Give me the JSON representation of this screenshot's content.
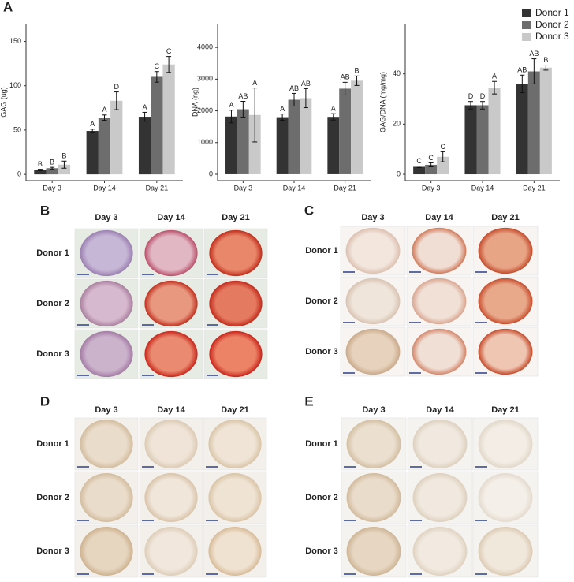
{
  "panel_label": "A",
  "legend": {
    "series": [
      {
        "name": "Donor 1",
        "color": "#333333"
      },
      {
        "name": "Donor 2",
        "color": "#6d6d6d"
      },
      {
        "name": "Donor 3",
        "color": "#c9c9c9"
      }
    ]
  },
  "chart_data": [
    {
      "type": "bar",
      "ylabel": "GAG (ug)",
      "categories": [
        "Day 3",
        "Day 14",
        "Day 21"
      ],
      "ylim": [
        -7,
        170
      ],
      "yticks": [
        0,
        50,
        100,
        150
      ],
      "series": [
        {
          "values": [
            5,
            49,
            65
          ],
          "errors": [
            0.8,
            2,
            5
          ],
          "letters": [
            "B",
            "A",
            "A"
          ]
        },
        {
          "values": [
            7,
            64,
            110
          ],
          "errors": [
            1,
            3,
            6
          ],
          "letters": [
            "B",
            "A",
            "C"
          ]
        },
        {
          "values": [
            11,
            83,
            124
          ],
          "errors": [
            4,
            10,
            9
          ],
          "letters": [
            "B",
            "D",
            "C"
          ]
        }
      ]
    },
    {
      "type": "bar",
      "ylabel": "DNA (ng)",
      "categories": [
        "Day 3",
        "Day 14",
        "Day 21"
      ],
      "ylim": [
        -200,
        4750
      ],
      "yticks": [
        0,
        1000,
        2000,
        3000,
        4000
      ],
      "series": [
        {
          "values": [
            1820,
            1800,
            1810
          ],
          "errors": [
            200,
            100,
            100
          ],
          "letters": [
            "A",
            "A",
            "A"
          ]
        },
        {
          "values": [
            2050,
            2350,
            2700
          ],
          "errors": [
            250,
            200,
            200
          ],
          "letters": [
            "AB",
            "AB",
            "AB"
          ]
        },
        {
          "values": [
            1870,
            2400,
            2950
          ],
          "errors": [
            850,
            300,
            150
          ],
          "letters": [
            "A",
            "AB",
            "B"
          ]
        }
      ]
    },
    {
      "type": "bar",
      "ylabel": "GAG/DNA (mg/mg)",
      "categories": [
        "Day 3",
        "Day 14",
        "Day 21"
      ],
      "ylim": [
        -2.5,
        60
      ],
      "yticks": [
        0,
        20,
        40
      ],
      "series": [
        {
          "values": [
            3,
            27.5,
            36
          ],
          "errors": [
            0.3,
            1.5,
            3.5
          ],
          "letters": [
            "C",
            "D",
            "AB"
          ]
        },
        {
          "values": [
            3.8,
            27.5,
            41
          ],
          "errors": [
            0.8,
            1.5,
            5
          ],
          "letters": [
            "C",
            "D",
            "AB"
          ]
        },
        {
          "values": [
            7,
            34.5,
            42.5
          ],
          "errors": [
            2,
            2.5,
            1
          ],
          "letters": [
            "C",
            "A",
            "B"
          ]
        }
      ]
    }
  ],
  "image_panels": [
    {
      "label": "B",
      "columns": [
        "Day 3",
        "Day 14",
        "Day 21"
      ],
      "rows": [
        "Donor 1",
        "Donor 2",
        "Donor 3"
      ]
    },
    {
      "label": "C",
      "columns": [
        "Day 3",
        "Day 14",
        "Day 21"
      ],
      "rows": [
        "Donor 1",
        "Donor 2",
        "Donor 3"
      ]
    },
    {
      "label": "D",
      "columns": [
        "Day 3",
        "Day 14",
        "Day 21"
      ],
      "rows": [
        "Donor 1",
        "Donor 2",
        "Donor 3"
      ]
    },
    {
      "label": "E",
      "columns": [
        "Day 3",
        "Day 14",
        "Day 21"
      ],
      "rows": [
        "Donor 1",
        "Donor 2",
        "Donor 3"
      ]
    }
  ]
}
